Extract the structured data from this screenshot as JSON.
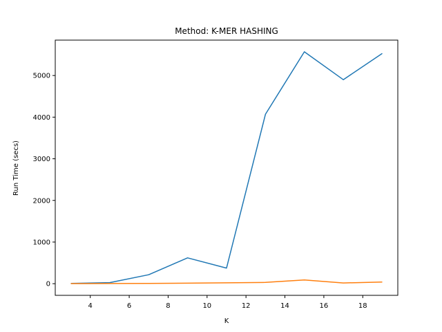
{
  "chart_data": {
    "type": "line",
    "title": "Method: K-MER HASHING",
    "xlabel": "K",
    "ylabel": "Run Time (secs)",
    "xlim": [
      2.2,
      19.8
    ],
    "ylim": [
      -280,
      5850
    ],
    "xticks": [
      4,
      6,
      8,
      10,
      12,
      14,
      16,
      18
    ],
    "yticks": [
      0,
      1000,
      2000,
      3000,
      4000,
      5000
    ],
    "grid": false,
    "legend": "none",
    "x": [
      3,
      5,
      7,
      9,
      11,
      13,
      15,
      17,
      19
    ],
    "series": [
      {
        "color": "#1f77b4",
        "values": [
          5,
          25,
          215,
          620,
          375,
          4070,
          5570,
          4900,
          5530
        ]
      },
      {
        "color": "#ff7f0e",
        "values": [
          2,
          4,
          8,
          12,
          20,
          30,
          90,
          18,
          40
        ]
      }
    ]
  }
}
